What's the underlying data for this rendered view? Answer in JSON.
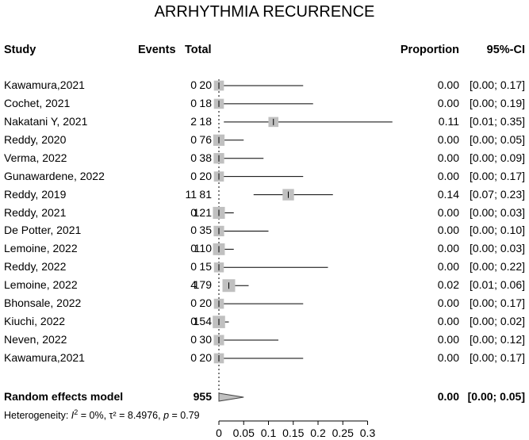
{
  "chart_data": {
    "type": "forest",
    "title": "ARRHYTHMIA RECURRENCE",
    "columns": {
      "study": "Study",
      "events": "Events",
      "total": "Total",
      "proportion": "Proportion",
      "ci": "95%-CI"
    },
    "studies": [
      {
        "study": "Kawamura,2021",
        "events": "0",
        "total": "20",
        "prop": 0.0,
        "lo": 0.0,
        "hi": 0.17,
        "prop_text": "0.00",
        "ci_text": "[0.00; 0.17]"
      },
      {
        "study": "Cochet, 2021",
        "events": "0",
        "total": "18",
        "prop": 0.0,
        "lo": 0.0,
        "hi": 0.19,
        "prop_text": "0.00",
        "ci_text": "[0.00; 0.19]"
      },
      {
        "study": "Nakatani Y, 2021",
        "events": "2",
        "total": "18",
        "prop": 0.11,
        "lo": 0.01,
        "hi": 0.35,
        "prop_text": "0.11",
        "ci_text": "[0.01; 0.35]"
      },
      {
        "study": "Reddy, 2020",
        "events": "0",
        "total": "76",
        "prop": 0.0,
        "lo": 0.0,
        "hi": 0.05,
        "prop_text": "0.00",
        "ci_text": "[0.00; 0.05]"
      },
      {
        "study": "Verma, 2022",
        "events": "0",
        "total": "38",
        "prop": 0.0,
        "lo": 0.0,
        "hi": 0.09,
        "prop_text": "0.00",
        "ci_text": "[0.00; 0.09]"
      },
      {
        "study": "Gunawardene, 2022",
        "events": "0",
        "total": "20",
        "prop": 0.0,
        "lo": 0.0,
        "hi": 0.17,
        "prop_text": "0.00",
        "ci_text": "[0.00; 0.17]"
      },
      {
        "study": "Reddy, 2019",
        "events": "11",
        "total": "81",
        "prop": 0.14,
        "lo": 0.07,
        "hi": 0.23,
        "prop_text": "0.14",
        "ci_text": "[0.07; 0.23]"
      },
      {
        "study": "Reddy, 2021",
        "events": "0",
        "total": "121",
        "prop": 0.0,
        "lo": 0.0,
        "hi": 0.03,
        "prop_text": "0.00",
        "ci_text": "[0.00; 0.03]"
      },
      {
        "study": "De Potter, 2021",
        "events": "0",
        "total": "35",
        "prop": 0.0,
        "lo": 0.0,
        "hi": 0.1,
        "prop_text": "0.00",
        "ci_text": "[0.00; 0.10]"
      },
      {
        "study": "Lemoine, 2022",
        "events": "0",
        "total": "110",
        "prop": 0.0,
        "lo": 0.0,
        "hi": 0.03,
        "prop_text": "0.00",
        "ci_text": "[0.00; 0.03]"
      },
      {
        "study": "Reddy, 2022",
        "events": "0",
        "total": "15",
        "prop": 0.0,
        "lo": 0.0,
        "hi": 0.22,
        "prop_text": "0.00",
        "ci_text": "[0.00; 0.22]"
      },
      {
        "study": "Lemoine, 2022",
        "events": "4",
        "total": "179",
        "prop": 0.02,
        "lo": 0.01,
        "hi": 0.06,
        "prop_text": "0.02",
        "ci_text": "[0.01; 0.06]"
      },
      {
        "study": "Bhonsale, 2022",
        "events": "0",
        "total": "20",
        "prop": 0.0,
        "lo": 0.0,
        "hi": 0.17,
        "prop_text": "0.00",
        "ci_text": "[0.00; 0.17]"
      },
      {
        "study": "Kiuchi, 2022",
        "events": "0",
        "total": "154",
        "prop": 0.0,
        "lo": 0.0,
        "hi": 0.02,
        "prop_text": "0.00",
        "ci_text": "[0.00; 0.02]"
      },
      {
        "study": "Neven, 2022",
        "events": "0",
        "total": "30",
        "prop": 0.0,
        "lo": 0.0,
        "hi": 0.12,
        "prop_text": "0.00",
        "ci_text": "[0.00; 0.12]"
      },
      {
        "study": "Kawamura,2021",
        "events": "0",
        "total": "20",
        "prop": 0.0,
        "lo": 0.0,
        "hi": 0.17,
        "prop_text": "0.00",
        "ci_text": "[0.00; 0.17]"
      }
    ],
    "summary": {
      "label": "Random effects model",
      "total": "955",
      "prop": 0.0,
      "lo": 0.0,
      "hi": 0.05,
      "prop_text": "0.00",
      "ci_text": "[0.00; 0.05]"
    },
    "heterogeneity": {
      "prefix": "Heterogeneity: ",
      "i2_symbol": "I",
      "i2_exp": "2",
      "i2_value": " = 0%, ",
      "tau2_text": "τ² = 8.4976, ",
      "p_symbol": "p",
      "p_value": " = 0.79"
    },
    "x_ticks": [
      "0",
      "0.05",
      "0.1",
      "0.15",
      "0.2",
      "0.25",
      "0.3"
    ],
    "x_tick_values": [
      0,
      0.05,
      0.1,
      0.15,
      0.2,
      0.25,
      0.3
    ],
    "xlim": [
      0,
      0.3
    ],
    "reference_line": 0,
    "colors": {
      "square": "#c0c0c0",
      "line": "#000000",
      "diamond": "#c0c0c0"
    }
  }
}
